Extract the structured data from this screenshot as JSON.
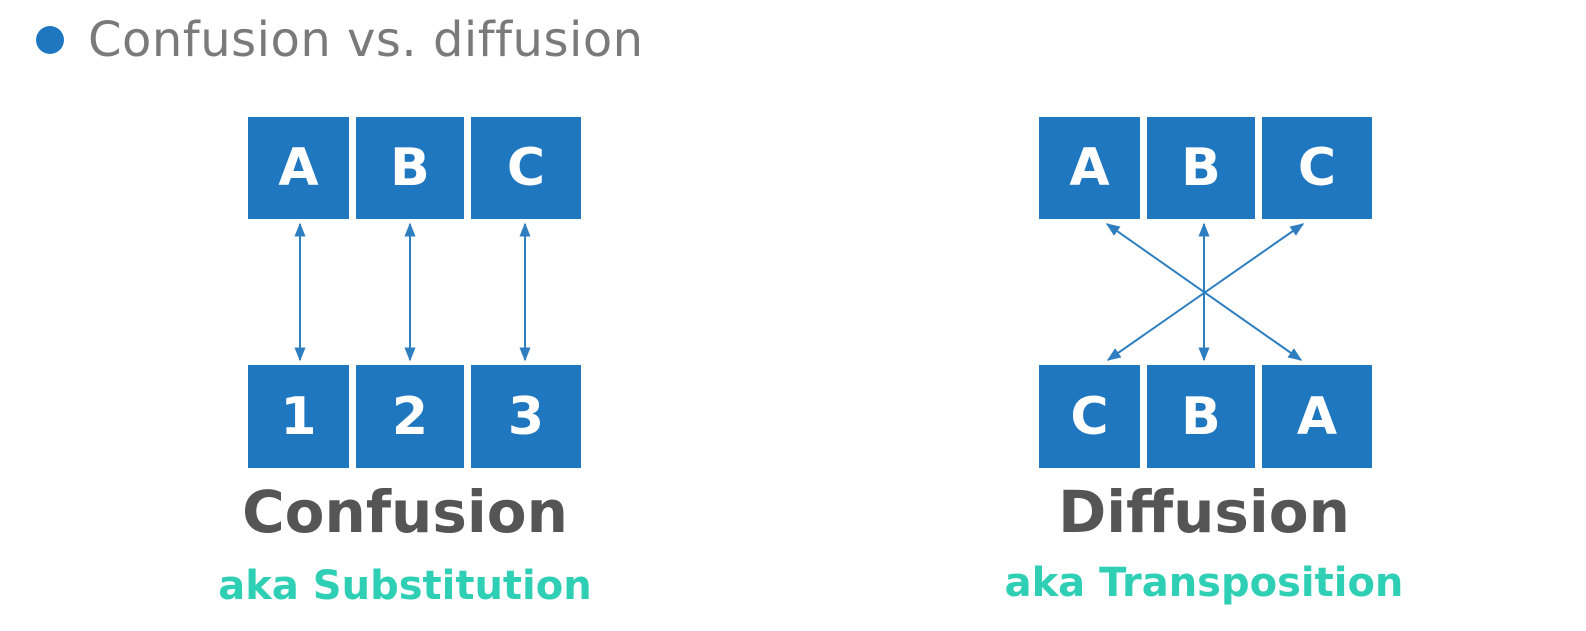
{
  "heading": "Confusion vs. diffusion",
  "confusion": {
    "top": [
      "A",
      "B",
      "C"
    ],
    "bottom": [
      "1",
      "2",
      "3"
    ],
    "title": "Confusion",
    "subtitle": "aka Substitution"
  },
  "diffusion": {
    "top": [
      "A",
      "B",
      "C"
    ],
    "bottom": [
      "C",
      "B",
      "A"
    ],
    "title": "Diffusion",
    "subtitle": "aka Transposition"
  },
  "colors": {
    "box": "#1f77c0",
    "arrow": "#2f7fc0",
    "heading": "#7a7a7a",
    "title": "#555555",
    "subtitle": "#2ecfb4"
  }
}
